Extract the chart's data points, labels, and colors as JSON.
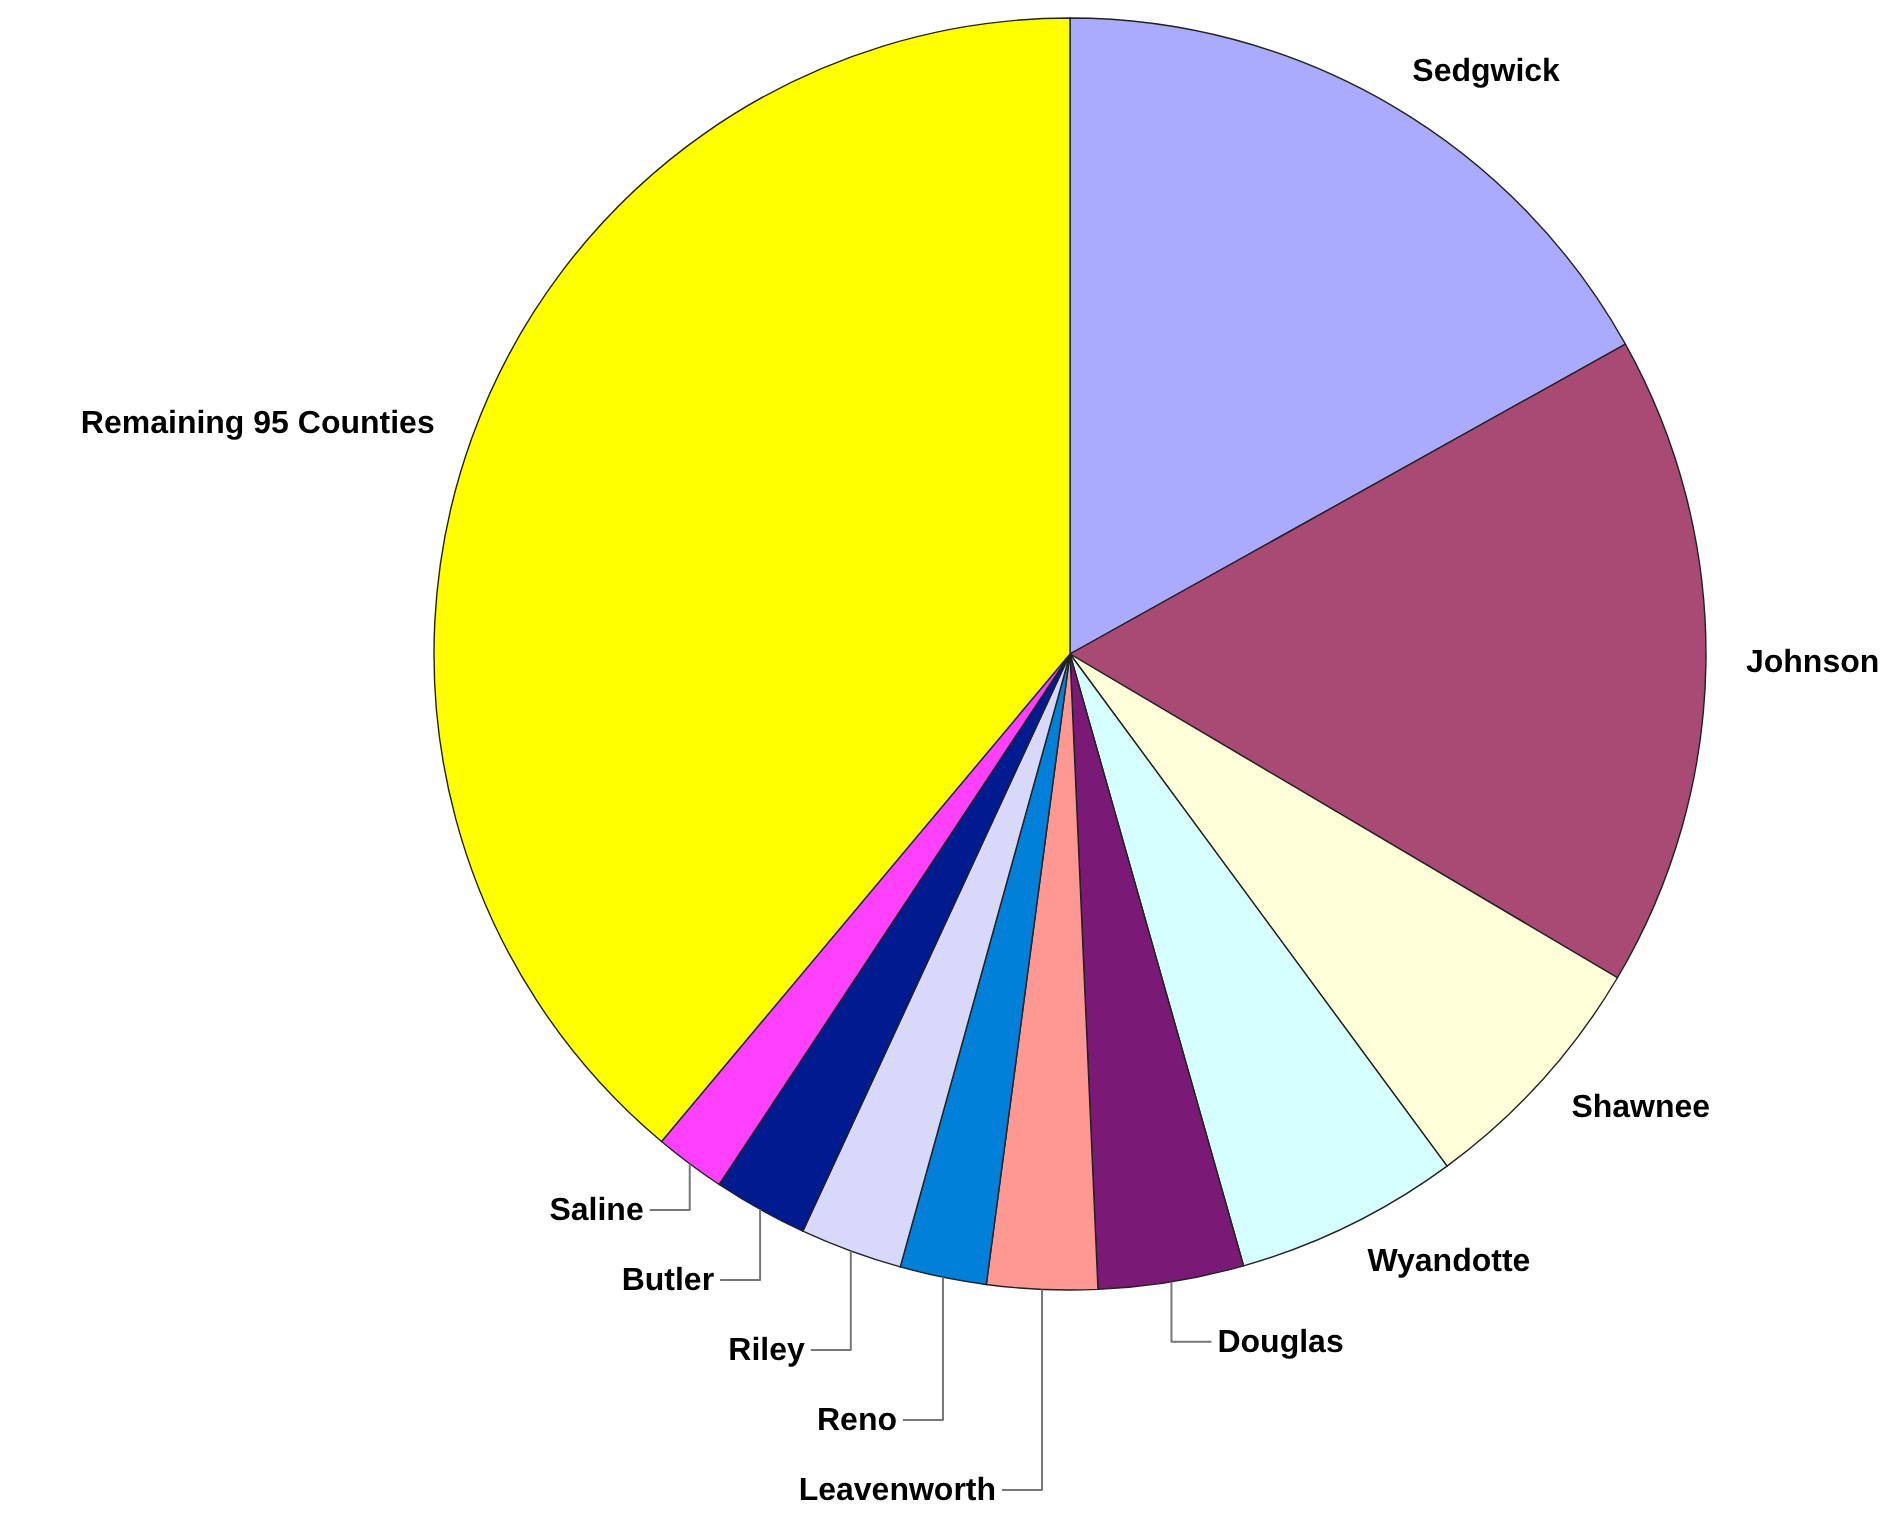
{
  "chart_data": {
    "type": "pie",
    "categories": [
      "Sedgwick",
      "Johnson",
      "Shawnee",
      "Wyandotte",
      "Douglas",
      "Leavenworth",
      "Reno",
      "Riley",
      "Butler",
      "Saline",
      "Remaining 95 Counties"
    ],
    "values": [
      16.9,
      16.6,
      6.4,
      5.7,
      3.7,
      2.8,
      2.2,
      2.6,
      2.4,
      1.8,
      38.9
    ],
    "colors": [
      "#aaaaff",
      "#a84a74",
      "#ffffd9",
      "#d6ffff",
      "#7a1a76",
      "#ff9892",
      "#0080d8",
      "#d8d8fa",
      "#001a90",
      "#ff40ff",
      "#ffff00"
    ]
  }
}
